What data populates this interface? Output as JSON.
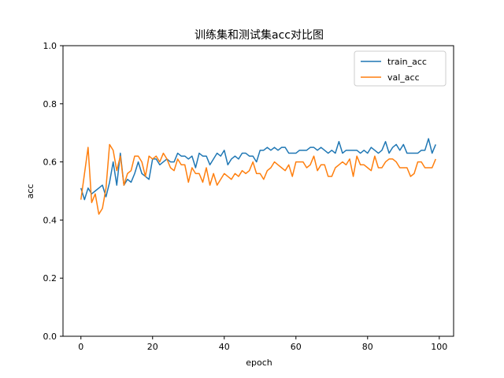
{
  "chart_data": {
    "type": "line",
    "title": "训练集和测试集acc对比图",
    "xlabel": "epoch",
    "ylabel": "acc",
    "xlim": [
      -5,
      104
    ],
    "ylim": [
      0.0,
      1.0
    ],
    "xticks": [
      0,
      20,
      40,
      60,
      80,
      100
    ],
    "yticks": [
      0.0,
      0.2,
      0.4,
      0.6,
      0.8,
      1.0
    ],
    "xtick_labels": [
      "0",
      "20",
      "40",
      "60",
      "80",
      "100"
    ],
    "ytick_labels": [
      "0.0",
      "0.2",
      "0.4",
      "0.6",
      "0.8",
      "1.0"
    ],
    "grid": false,
    "legend_position": "top-right",
    "x": [
      0,
      1,
      2,
      3,
      4,
      5,
      6,
      7,
      8,
      9,
      10,
      11,
      12,
      13,
      14,
      15,
      16,
      17,
      18,
      19,
      20,
      21,
      22,
      23,
      24,
      25,
      26,
      27,
      28,
      29,
      30,
      31,
      32,
      33,
      34,
      35,
      36,
      37,
      38,
      39,
      40,
      41,
      42,
      43,
      44,
      45,
      46,
      47,
      48,
      49,
      50,
      51,
      52,
      53,
      54,
      55,
      56,
      57,
      58,
      59,
      60,
      61,
      62,
      63,
      64,
      65,
      66,
      67,
      68,
      69,
      70,
      71,
      72,
      73,
      74,
      75,
      76,
      77,
      78,
      79,
      80,
      81,
      82,
      83,
      84,
      85,
      86,
      87,
      88,
      89,
      90,
      91,
      92,
      93,
      94,
      95,
      96,
      97,
      98,
      99
    ],
    "series": [
      {
        "name": "train_acc",
        "color": "#1f77b4",
        "values": [
          0.51,
          0.47,
          0.51,
          0.49,
          0.5,
          0.51,
          0.52,
          0.48,
          0.53,
          0.6,
          0.52,
          0.63,
          0.52,
          0.54,
          0.53,
          0.56,
          0.6,
          0.56,
          0.55,
          0.54,
          0.61,
          0.61,
          0.59,
          0.6,
          0.61,
          0.6,
          0.6,
          0.63,
          0.62,
          0.62,
          0.61,
          0.62,
          0.58,
          0.63,
          0.62,
          0.62,
          0.59,
          0.61,
          0.63,
          0.62,
          0.64,
          0.59,
          0.61,
          0.62,
          0.61,
          0.63,
          0.63,
          0.62,
          0.62,
          0.6,
          0.64,
          0.64,
          0.65,
          0.64,
          0.65,
          0.64,
          0.65,
          0.65,
          0.63,
          0.63,
          0.63,
          0.64,
          0.64,
          0.64,
          0.65,
          0.65,
          0.64,
          0.65,
          0.64,
          0.63,
          0.64,
          0.63,
          0.67,
          0.63,
          0.64,
          0.64,
          0.64,
          0.64,
          0.63,
          0.64,
          0.63,
          0.65,
          0.64,
          0.63,
          0.64,
          0.67,
          0.63,
          0.65,
          0.66,
          0.64,
          0.66,
          0.63,
          0.63,
          0.63,
          0.63,
          0.64,
          0.64,
          0.68,
          0.63,
          0.66
        ]
      },
      {
        "name": "val_acc",
        "color": "#ff7f0e",
        "values": [
          0.47,
          0.56,
          0.65,
          0.46,
          0.49,
          0.42,
          0.44,
          0.51,
          0.66,
          0.64,
          0.57,
          0.62,
          0.52,
          0.56,
          0.57,
          0.62,
          0.62,
          0.6,
          0.55,
          0.62,
          0.61,
          0.62,
          0.6,
          0.63,
          0.61,
          0.58,
          0.57,
          0.61,
          0.59,
          0.59,
          0.53,
          0.58,
          0.56,
          0.56,
          0.53,
          0.58,
          0.52,
          0.56,
          0.52,
          0.54,
          0.56,
          0.55,
          0.54,
          0.56,
          0.55,
          0.57,
          0.56,
          0.57,
          0.6,
          0.56,
          0.56,
          0.54,
          0.57,
          0.58,
          0.6,
          0.59,
          0.58,
          0.57,
          0.59,
          0.55,
          0.6,
          0.6,
          0.6,
          0.58,
          0.59,
          0.62,
          0.57,
          0.59,
          0.59,
          0.55,
          0.55,
          0.58,
          0.59,
          0.6,
          0.59,
          0.61,
          0.55,
          0.62,
          0.59,
          0.59,
          0.58,
          0.57,
          0.62,
          0.58,
          0.58,
          0.6,
          0.61,
          0.61,
          0.6,
          0.58,
          0.58,
          0.58,
          0.55,
          0.56,
          0.6,
          0.6,
          0.58,
          0.58,
          0.58,
          0.61
        ]
      }
    ]
  }
}
